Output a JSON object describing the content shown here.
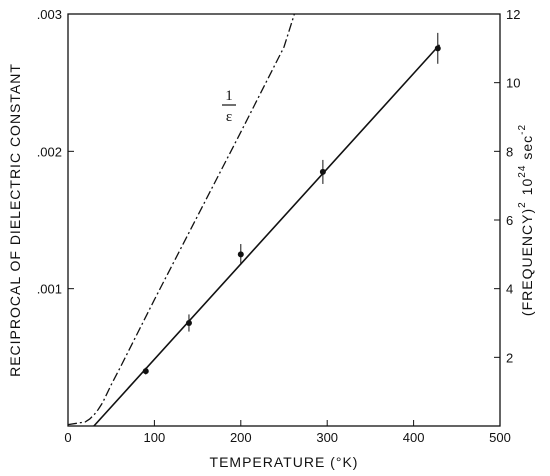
{
  "chart_data": {
    "type": "line",
    "xlabel": "TEMPERATURE (°K)",
    "ylabel_left": "RECIPROCAL OF DIELECTRIC CONSTANT",
    "ylabel_right": "(FREQUENCY)",
    "ylabel_right_sup": "2",
    "ylabel_right_unit": "10",
    "ylabel_right_unit_exp": "24",
    "ylabel_right_unit_sec": "sec",
    "ylabel_right_unit_sec_exp": "-2",
    "xlim": [
      0,
      500
    ],
    "ylim_left": [
      0,
      0.003
    ],
    "ylim_right": [
      0,
      12
    ],
    "x_ticks": [
      0,
      100,
      200,
      300,
      400,
      500
    ],
    "x_tick_labels": [
      "0",
      "100",
      "200",
      "300",
      "400",
      "500"
    ],
    "y_left_ticks": [
      0.001,
      0.002,
      0.003
    ],
    "y_left_tick_labels": [
      ".001",
      ".002",
      ".003"
    ],
    "y_right_ticks": [
      2,
      4,
      6,
      8,
      10,
      12
    ],
    "y_right_tick_labels": [
      "2",
      "4",
      "6",
      "8",
      "10",
      "12"
    ],
    "annotation_num": "1",
    "annotation_den": "ε",
    "series": [
      {
        "axis": "left",
        "style": "dash-dot",
        "x": [
          0,
          10,
          20,
          25,
          30,
          35,
          40,
          50,
          60,
          80,
          100,
          150,
          200,
          250,
          262
        ],
        "y": [
          1e-05,
          2e-05,
          3e-05,
          5e-05,
          8e-05,
          0.00012,
          0.00017,
          0.0003,
          0.00042,
          0.00067,
          0.00092,
          0.00153,
          0.00214,
          0.00276,
          0.003
        ]
      },
      {
        "axis": "right",
        "style": "solid",
        "x": [
          30,
          430
        ],
        "y": [
          0,
          11.1
        ]
      },
      {
        "axis": "right",
        "style": "points",
        "x": [
          90,
          140,
          200,
          295,
          428
        ],
        "y": [
          1.6,
          3.0,
          5.0,
          7.4,
          11.0
        ],
        "err": [
          0.1,
          0.25,
          0.3,
          0.35,
          0.45
        ]
      }
    ]
  }
}
